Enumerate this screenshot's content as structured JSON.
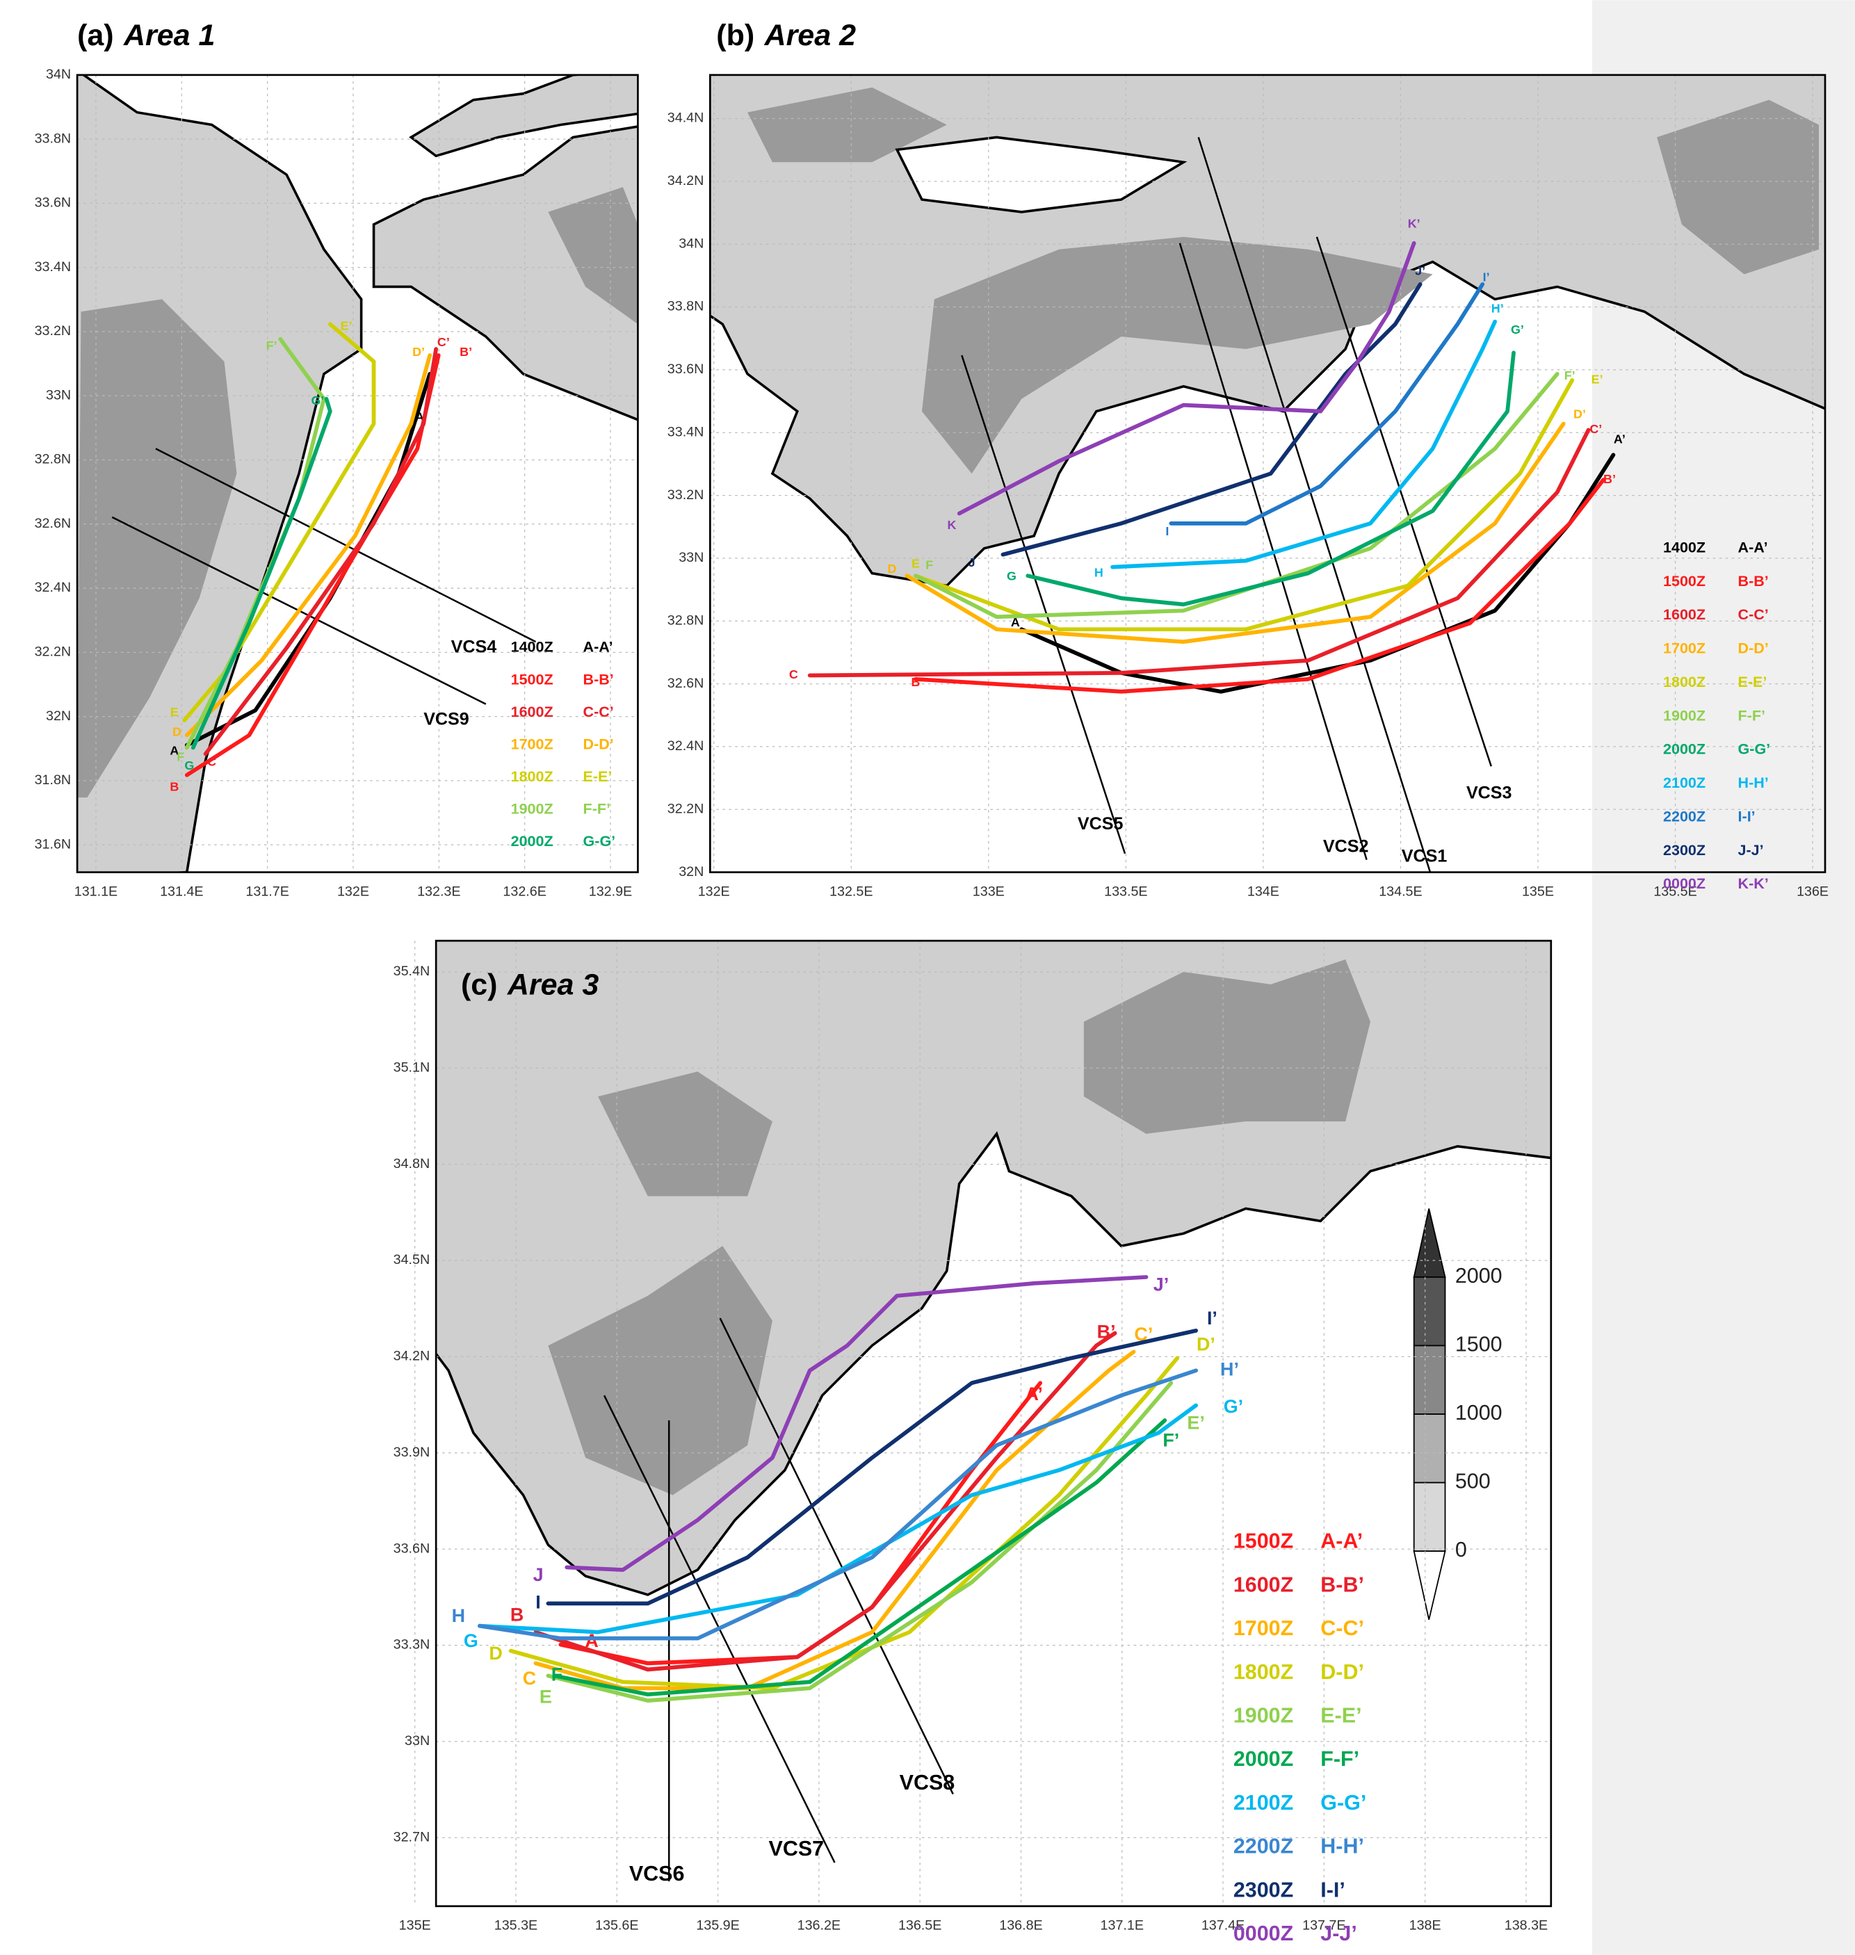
{
  "panels": [
    {
      "label": "(a)",
      "name": "Area 1",
      "xticks": [
        "131.1E",
        "131.4E",
        "131.7E",
        "132E",
        "132.3E",
        "132.6E",
        "132.9E"
      ],
      "yticks": [
        "34N",
        "33.8N",
        "33.6N",
        "33.4N",
        "33.2N",
        "33N",
        "32.8N",
        "32.6N",
        "32.4N",
        "32.2N",
        "32N",
        "31.8N",
        "31.6N"
      ],
      "legend": [
        {
          "time": "1400Z",
          "track": "A-A’",
          "color": "#000000"
        },
        {
          "time": "1500Z",
          "track": "B-B’",
          "color": "#ff1a1a"
        },
        {
          "time": "1600Z",
          "track": "C-C’",
          "color": "#e8202a"
        },
        {
          "time": "1700Z",
          "track": "D-D’",
          "color": "#ffb300"
        },
        {
          "time": "1800Z",
          "track": "E-E’",
          "color": "#cfcf00"
        },
        {
          "time": "1900Z",
          "track": "F-F’",
          "color": "#8fd14f"
        },
        {
          "time": "2000Z",
          "track": "G-G’",
          "color": "#00a86b"
        }
      ],
      "tracks": [
        {
          "start": "A",
          "end": "A’"
        },
        {
          "start": "B",
          "end": "B’"
        },
        {
          "start": "C",
          "end": "C’"
        },
        {
          "start": "D",
          "end": "D’"
        },
        {
          "start": "E",
          "end": "E’"
        },
        {
          "start": "F",
          "end": "F’"
        },
        {
          "start": "G",
          "end": "G’"
        }
      ],
      "sections": [
        "VCS4",
        "VCS9"
      ]
    },
    {
      "label": "(b)",
      "name": "Area 2",
      "xticks": [
        "132E",
        "132.5E",
        "133E",
        "133.5E",
        "134E",
        "134.5E",
        "135E",
        "135.5E",
        "136E"
      ],
      "yticks": [
        "34.4N",
        "34.2N",
        "34N",
        "33.8N",
        "33.6N",
        "33.4N",
        "33.2N",
        "33N",
        "32.8N",
        "32.6N",
        "32.4N",
        "32.2N",
        "32N"
      ],
      "legend": [
        {
          "time": "1400Z",
          "track": "A-A’",
          "color": "#000000"
        },
        {
          "time": "1500Z",
          "track": "B-B’",
          "color": "#ff1a1a"
        },
        {
          "time": "1600Z",
          "track": "C-C’",
          "color": "#e8202a"
        },
        {
          "time": "1700Z",
          "track": "D-D’",
          "color": "#ffb300"
        },
        {
          "time": "1800Z",
          "track": "E-E’",
          "color": "#cfcf00"
        },
        {
          "time": "1900Z",
          "track": "F-F’",
          "color": "#8fd14f"
        },
        {
          "time": "2000Z",
          "track": "G-G’",
          "color": "#00a86b"
        },
        {
          "time": "2100Z",
          "track": "H-H’",
          "color": "#00b8f0"
        },
        {
          "time": "2200Z",
          "track": "I-I’",
          "color": "#1f78c8"
        },
        {
          "time": "2300Z",
          "track": "J-J’",
          "color": "#10306e"
        },
        {
          "time": "0000Z",
          "track": "K-K’",
          "color": "#8e3fb5"
        }
      ],
      "tracks": [
        {
          "start": "A",
          "end": "A’"
        },
        {
          "start": "B",
          "end": "B’"
        },
        {
          "start": "C",
          "end": "C’"
        },
        {
          "start": "D",
          "end": "D’"
        },
        {
          "start": "E",
          "end": "E’"
        },
        {
          "start": "F",
          "end": "F’"
        },
        {
          "start": "G",
          "end": "G’"
        },
        {
          "start": "H",
          "end": "H’"
        },
        {
          "start": "I",
          "end": "I’"
        },
        {
          "start": "J",
          "end": "J’"
        },
        {
          "start": "K",
          "end": "K’"
        }
      ],
      "sections": [
        "VCS5",
        "VCS2",
        "VCS1",
        "VCS3"
      ]
    },
    {
      "label": "(c)",
      "name": "Area 3",
      "xticks": [
        "135E",
        "135.3E",
        "135.6E",
        "135.9E",
        "136.2E",
        "136.5E",
        "136.8E",
        "137.1E",
        "137.4E",
        "137.7E",
        "138E",
        "138.3E"
      ],
      "yticks": [
        "35.4N",
        "35.1N",
        "34.8N",
        "34.5N",
        "34.2N",
        "33.9N",
        "33.6N",
        "33.3N",
        "33N",
        "32.7N"
      ],
      "legend": [
        {
          "time": "1500Z",
          "track": "A-A’",
          "color": "#ff1a1a"
        },
        {
          "time": "1600Z",
          "track": "B-B’",
          "color": "#e8202a"
        },
        {
          "time": "1700Z",
          "track": "C-C’",
          "color": "#ffb300"
        },
        {
          "time": "1800Z",
          "track": "D-D’",
          "color": "#cfcf00"
        },
        {
          "time": "1900Z",
          "track": "E-E’",
          "color": "#8fd14f"
        },
        {
          "time": "2000Z",
          "track": "F-F’",
          "color": "#00a84f"
        },
        {
          "time": "2100Z",
          "track": "G-G’",
          "color": "#00b8f0"
        },
        {
          "time": "2200Z",
          "track": "H-H’",
          "color": "#3a86d0"
        },
        {
          "time": "2300Z",
          "track": "I-I’",
          "color": "#10306e"
        },
        {
          "time": "0000Z",
          "track": "J-J’",
          "color": "#8e3fb5"
        }
      ],
      "tracks": [
        {
          "start": "A",
          "end": "A’"
        },
        {
          "start": "B",
          "end": "B’"
        },
        {
          "start": "C",
          "end": "C’"
        },
        {
          "start": "D",
          "end": "D’"
        },
        {
          "start": "E",
          "end": "E’"
        },
        {
          "start": "F",
          "end": "F’"
        },
        {
          "start": "G",
          "end": "G’"
        },
        {
          "start": "H",
          "end": "H’"
        },
        {
          "start": "I",
          "end": "I’"
        },
        {
          "start": "J",
          "end": "J’"
        }
      ],
      "sections": [
        "VCS6",
        "VCS7",
        "VCS8"
      ]
    }
  ],
  "colorbar": {
    "ticks": [
      2000,
      1500,
      1000,
      500,
      0
    ]
  }
}
